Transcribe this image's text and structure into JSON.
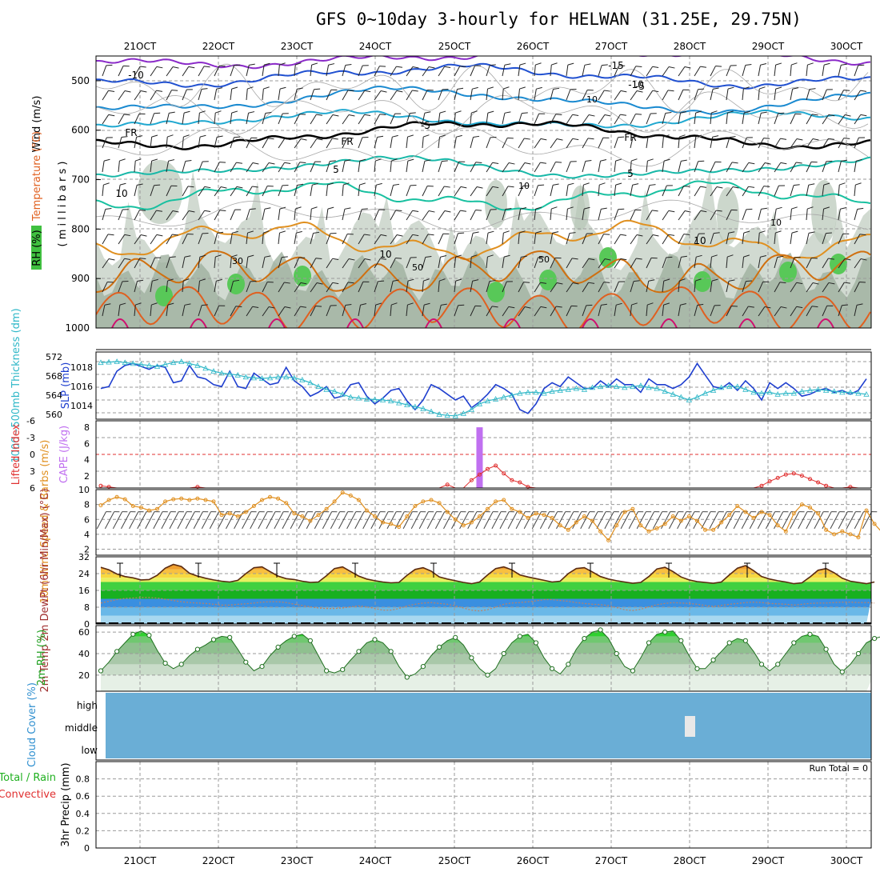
{
  "header": {
    "title": "GFS 0~10day 3-hourly for HELWAN (31.25E, 29.75N)"
  },
  "time_axis": {
    "labels": [
      "21OCT",
      "22OCT",
      "23OCT",
      "24OCT",
      "25OCT",
      "26OCT",
      "27OCT",
      "28OCT",
      "29OCT",
      "30OCT"
    ]
  },
  "colors": {
    "temp_warm": "#e09020",
    "temp_cold": "#2050d0",
    "freezing_line": "#000000",
    "rh_shade": "#9aa89a",
    "rh_high": "#40c040",
    "slp": "#1f3fcf",
    "thickness": "#30b8c8",
    "cape_bar": "#c070f0",
    "lifted_index": "#e03030",
    "wind_speed": "#e09020",
    "rh2m": "#20b020",
    "cloud": "#6aaed6"
  },
  "chart_data": [
    {
      "id": "panel-upper-air",
      "type": "heatmap",
      "ylabels": [
        "Wind (m/s)",
        "Temperature (°C)",
        "RH (%)",
        "( m i l l i b a r s )"
      ],
      "yticks": [
        "500",
        "600",
        "700",
        "800",
        "900",
        "1000"
      ],
      "ylim": [
        450,
        1000
      ],
      "contour_labels": {
        "temperature": [
          "-15",
          "-10",
          "-10",
          "-5",
          "-5",
          "FR",
          "FR",
          "FR",
          "5",
          "5",
          "10",
          "10",
          "10"
        ],
        "rh": [
          "10",
          "10",
          "30",
          "50",
          "50",
          "10"
        ]
      }
    },
    {
      "id": "panel-slp",
      "type": "line",
      "ylabel_left": "1000~500mb Thickness (dm)",
      "ylabel_right": "SLP (mb)",
      "yticks_left": [
        "572",
        "568",
        "564",
        "560"
      ],
      "yticks_right": [
        "1018",
        "1016",
        "1014"
      ],
      "ylim_left": [
        559,
        573
      ],
      "ylim_right": [
        1012.6,
        1019.6
      ],
      "series": [
        {
          "name": "SLP (mb)",
          "values": [
            1015.8,
            1016.0,
            1017.6,
            1018.2,
            1018.4,
            1018.1,
            1017.8,
            1018.2,
            1018.0,
            1016.4,
            1016.6,
            1018.2,
            1017.0,
            1016.8,
            1016.2,
            1016.0,
            1017.6,
            1016.0,
            1015.8,
            1017.4,
            1016.8,
            1016.2,
            1016.4,
            1018.0,
            1016.6,
            1016.0,
            1015.0,
            1015.4,
            1016.0,
            1014.8,
            1015.0,
            1016.2,
            1016.4,
            1015.0,
            1014.2,
            1014.8,
            1015.6,
            1015.8,
            1014.5,
            1013.6,
            1014.6,
            1016.2,
            1015.8,
            1015.2,
            1014.6,
            1015.0,
            1013.8,
            1014.4,
            1015.2,
            1016.2,
            1015.8,
            1015.2,
            1013.6,
            1013.2,
            1014.2,
            1015.8,
            1016.4,
            1016.0,
            1017.0,
            1016.4,
            1015.8,
            1015.8,
            1016.6,
            1016.0,
            1016.8,
            1016.2,
            1016.2,
            1015.4,
            1016.8,
            1016.2,
            1016.2,
            1015.8,
            1016.2,
            1017.0,
            1018.4,
            1017.2,
            1016.0,
            1015.8,
            1016.4,
            1015.6,
            1016.6,
            1015.8,
            1014.6,
            1016.4,
            1015.8,
            1016.4,
            1015.8,
            1015.0,
            1015.2,
            1015.6,
            1015.8,
            1015.4,
            1015.6,
            1015.2,
            1015.6,
            1016.8
          ]
        },
        {
          "name": "1000~500mb Thickness (dm)",
          "values": [
            570.8,
            570.9,
            571.0,
            570.8,
            570.6,
            570.4,
            570.2,
            570.0,
            570.4,
            570.8,
            571.0,
            570.6,
            570.2,
            569.6,
            569.0,
            568.6,
            568.4,
            568.2,
            567.8,
            567.6,
            567.5,
            567.6,
            567.8,
            567.8,
            567.6,
            567.2,
            566.6,
            565.8,
            565.2,
            564.8,
            564.2,
            563.6,
            563.4,
            563.2,
            563.1,
            563.0,
            562.8,
            562.4,
            562.0,
            561.6,
            561.2,
            560.6,
            560.0,
            559.8,
            559.7,
            560.2,
            561.0,
            562.2,
            562.8,
            563.2,
            563.6,
            564.0,
            564.4,
            564.6,
            564.6,
            564.4,
            564.8,
            565.0,
            565.2,
            565.4,
            565.2,
            565.6,
            565.8,
            566.0,
            565.8,
            565.6,
            565.8,
            566.0,
            565.6,
            565.4,
            564.8,
            564.2,
            563.6,
            563.0,
            563.6,
            564.4,
            565.0,
            565.6,
            565.8,
            565.8,
            565.2,
            564.6,
            564.4,
            564.6,
            564.2,
            564.4,
            564.4,
            564.8,
            565.0,
            565.2,
            565.0,
            564.8,
            564.6,
            564.6,
            564.4,
            564.2
          ]
        }
      ]
    },
    {
      "id": "panel-cape",
      "type": "bar",
      "ylabel_left": "Lifted Index",
      "ylabel_right": "CAPE (J/kg)",
      "yticks_left": [
        "-6",
        "-3",
        "0",
        "3",
        "6"
      ],
      "yticks_right": [
        "8",
        "6",
        "4",
        "2"
      ],
      "ylim_li": [
        -6,
        6
      ],
      "ylim_cape": [
        0.5,
        8.8
      ],
      "cape": {
        "name": "CAPE (J/kg)",
        "index": 47,
        "value": 8.0
      },
      "lifted_index": {
        "name": "Lifted Index",
        "values": [
          5.6,
          5.8,
          6.0,
          6.0,
          6.0,
          6.0,
          6.0,
          6.0,
          6.0,
          6.0,
          6.0,
          6.0,
          5.8,
          6.0,
          6.0,
          6.0,
          6.0,
          6.0,
          6.0,
          6.0,
          6.0,
          6.0,
          6.0,
          6.0,
          6.0,
          6.0,
          6.0,
          6.0,
          6.0,
          6.0,
          6.0,
          6.0,
          6.0,
          6.0,
          6.0,
          6.0,
          6.0,
          6.0,
          6.0,
          6.0,
          6.0,
          6.0,
          6.0,
          5.4,
          6.0,
          6.0,
          4.6,
          3.6,
          2.6,
          2.0,
          3.4,
          4.6,
          5.0,
          5.8,
          6.0,
          6.0,
          6.0,
          6.0,
          6.0,
          6.0,
          6.0,
          6.0,
          6.0,
          6.0,
          6.0,
          6.0,
          6.0,
          6.0,
          6.0,
          6.0,
          6.0,
          6.0,
          6.0,
          6.0,
          6.0,
          6.0,
          6.0,
          6.0,
          6.0,
          6.0,
          6.0,
          6.0,
          5.6,
          4.8,
          4.2,
          3.6,
          3.4,
          3.8,
          4.4,
          5.0,
          5.6,
          6.0,
          6.0,
          5.8,
          6.0,
          6.0
        ]
      }
    },
    {
      "id": "panel-wind10m",
      "type": "line",
      "ylabel": "10m Wind Speed & Barbs (m/s)",
      "yticks": [
        "10",
        "8",
        "6",
        "4",
        "2"
      ],
      "ylim": [
        1.2,
        10
      ],
      "series": [
        {
          "name": "10m Wind Speed",
          "values": [
            7.9,
            8.6,
            9.0,
            8.7,
            7.8,
            7.6,
            7.2,
            7.4,
            8.4,
            8.7,
            8.8,
            8.6,
            8.8,
            8.6,
            8.4,
            6.6,
            6.8,
            6.4,
            7.0,
            7.8,
            8.6,
            9.0,
            8.8,
            8.2,
            6.8,
            6.4,
            5.8,
            6.6,
            7.4,
            8.4,
            9.6,
            9.2,
            8.6,
            7.2,
            6.4,
            5.6,
            5.4,
            5.0,
            6.4,
            7.8,
            8.4,
            8.6,
            8.2,
            7.0,
            6.0,
            5.2,
            5.6,
            6.4,
            7.4,
            8.4,
            8.6,
            7.4,
            7.0,
            6.2,
            6.8,
            6.6,
            6.2,
            5.2,
            4.6,
            5.6,
            6.4,
            5.8,
            4.4,
            3.2,
            5.2,
            7.0,
            7.4,
            5.2,
            4.4,
            4.8,
            5.4,
            6.4,
            5.8,
            6.4,
            5.8,
            4.6,
            4.6,
            5.6,
            6.6,
            7.8,
            7.0,
            6.2,
            7.0,
            6.6,
            5.2,
            4.4,
            6.8,
            8.0,
            7.6,
            6.8,
            4.6,
            4.0,
            4.4,
            4.0,
            3.6,
            7.2,
            5.4,
            4.2,
            3.0,
            2.8,
            3.4
          ]
        }
      ]
    },
    {
      "id": "panel-temp2m",
      "type": "area",
      "ylabel": "2m Temp 2m DewPt (6hr Min/Max) (°C)",
      "yticks": [
        "32",
        "24",
        "16",
        "8",
        "0"
      ],
      "ylim": [
        0,
        32
      ],
      "series": [
        {
          "name": "2m Temp",
          "values": [
            27.0,
            25.8,
            23.8,
            22.6,
            22.0,
            21.0,
            21.2,
            23.2,
            26.6,
            28.4,
            27.4,
            24.2,
            22.8,
            21.8,
            21.0,
            20.4,
            20.0,
            20.8,
            24.0,
            26.8,
            27.2,
            25.0,
            22.8,
            21.6,
            21.2,
            20.4,
            19.8,
            20.0,
            23.0,
            26.4,
            27.2,
            25.0,
            22.8,
            21.4,
            20.6,
            20.0,
            19.6,
            19.8,
            23.2,
            26.0,
            26.8,
            25.2,
            22.4,
            21.4,
            20.6,
            19.8,
            19.2,
            20.0,
            23.4,
            26.4,
            27.2,
            25.8,
            23.4,
            22.4,
            21.6,
            20.8,
            20.0,
            20.4,
            24.0,
            26.4,
            26.8,
            24.8,
            22.6,
            21.4,
            20.6,
            20.0,
            19.4,
            19.8,
            22.6,
            26.2,
            27.0,
            25.0,
            22.4,
            21.0,
            20.2,
            19.8,
            19.4,
            20.0,
            23.4,
            26.6,
            27.8,
            25.4,
            22.6,
            21.4,
            20.6,
            20.0,
            19.2,
            19.6,
            22.4,
            25.6,
            26.4,
            24.4,
            21.8,
            20.4,
            19.8,
            19.2,
            20.0
          ]
        },
        {
          "name": "2m DewPt",
          "values": [
            10.0,
            10.8,
            11.6,
            12.2,
            12.4,
            12.6,
            12.6,
            12.4,
            11.8,
            11.2,
            10.6,
            10.2,
            10.0,
            9.8,
            9.4,
            9.0,
            9.0,
            9.4,
            9.6,
            10.0,
            10.4,
            10.6,
            10.6,
            10.2,
            9.4,
            8.8,
            8.2,
            7.6,
            7.4,
            7.4,
            7.6,
            8.2,
            8.6,
            8.2,
            7.4,
            6.6,
            6.6,
            7.4,
            8.6,
            9.4,
            10.0,
            10.2,
            9.8,
            9.4,
            8.6,
            7.6,
            6.6,
            6.2,
            6.8,
            8.0,
            9.4,
            10.0,
            10.2,
            10.6,
            11.0,
            11.6,
            11.6,
            11.2,
            10.8,
            10.2,
            9.8,
            9.4,
            9.2,
            8.8,
            7.8,
            6.8,
            6.4,
            7.0,
            8.2,
            9.2,
            9.8,
            10.2,
            10.0,
            9.8,
            9.4,
            8.8,
            8.4,
            8.8,
            9.4,
            9.8,
            10.2,
            10.4,
            10.2,
            9.8,
            9.6,
            9.4,
            9.0,
            9.4,
            9.8,
            10.0,
            10.0,
            10.2,
            10.4,
            10.4,
            10.2,
            10.2,
            10.0
          ]
        }
      ]
    },
    {
      "id": "panel-rh2m",
      "type": "area",
      "ylabel": "2m RH (%)",
      "yticks": [
        "60",
        "40",
        "20"
      ],
      "ylim": [
        5,
        66
      ],
      "series": [
        {
          "name": "2m RH",
          "values": [
            24,
            32,
            42,
            50,
            58,
            61,
            57,
            43,
            31,
            26,
            30,
            38,
            44,
            48,
            53,
            56,
            55,
            44,
            32,
            24,
            28,
            38,
            46,
            52,
            56,
            58,
            52,
            38,
            24,
            22,
            25,
            34,
            42,
            50,
            53,
            50,
            42,
            28,
            18,
            21,
            28,
            38,
            46,
            52,
            55,
            48,
            36,
            26,
            20,
            26,
            40,
            50,
            56,
            58,
            50,
            36,
            26,
            21,
            30,
            44,
            54,
            60,
            62,
            54,
            40,
            28,
            24,
            36,
            50,
            58,
            60,
            61,
            52,
            38,
            26,
            26,
            34,
            42,
            50,
            54,
            52,
            42,
            30,
            24,
            30,
            40,
            50,
            56,
            58,
            56,
            44,
            30,
            23,
            30,
            40,
            50,
            54,
            56,
            53
          ]
        }
      ]
    },
    {
      "id": "panel-cloud",
      "type": "heatmap",
      "ylabel": "Cloud Cover (%)",
      "levels": [
        "high",
        "middle",
        "low"
      ]
    },
    {
      "id": "panel-precip",
      "type": "bar",
      "ylabel_left": "Total / Rain",
      "ylabel_left2": "Convective",
      "ylabel": "3hr Precip (mm)",
      "yticks": [
        "0.8",
        "0.6",
        "0.4",
        "0.2",
        "0"
      ],
      "ylim": [
        0,
        1.0
      ],
      "run_total": "Run Total = 0",
      "series": [
        {
          "name": "Total / Rain",
          "values": []
        }
      ]
    }
  ]
}
